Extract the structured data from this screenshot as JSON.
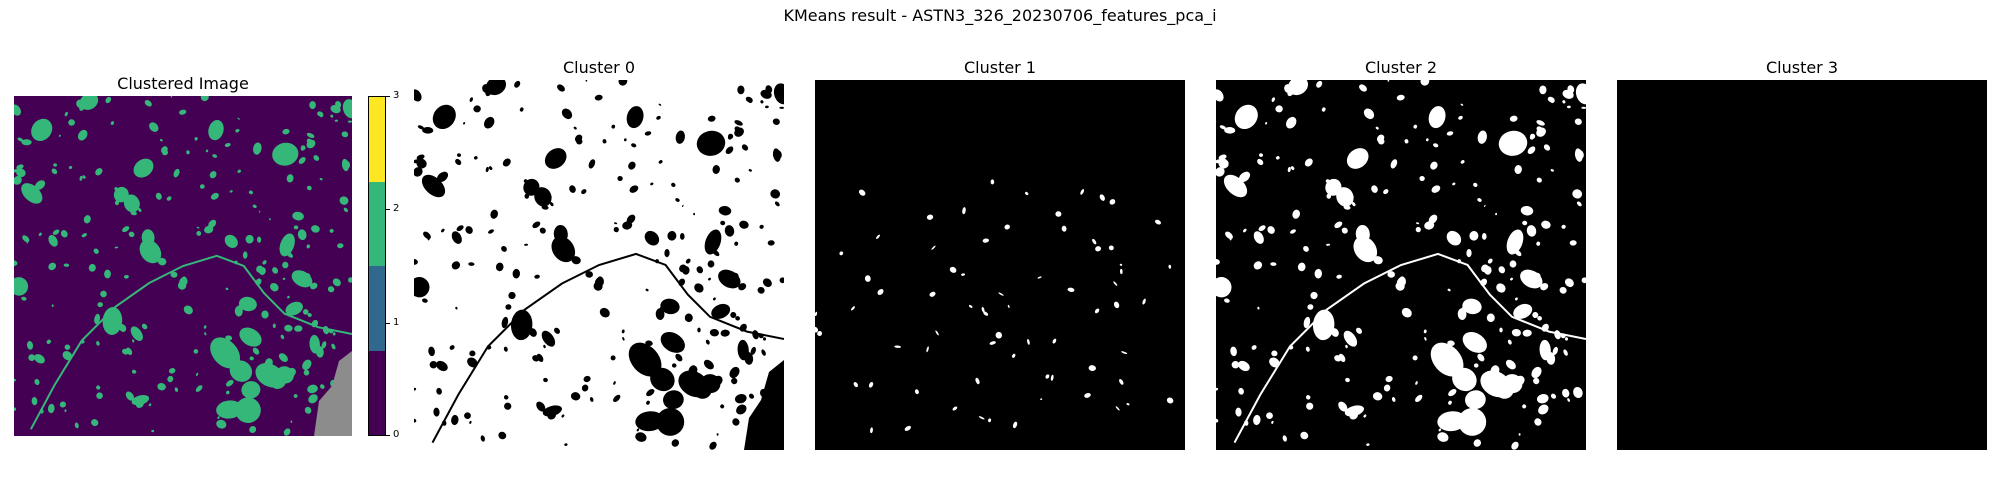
{
  "figure": {
    "suptitle": "KMeans result - ASTN3_326_20230706_features_pca_i"
  },
  "panels": {
    "clustered": {
      "title": "Clustered Image"
    },
    "cluster0": {
      "title": "Cluster 0"
    },
    "cluster1": {
      "title": "Cluster 1"
    },
    "cluster2": {
      "title": "Cluster 2"
    },
    "cluster3": {
      "title": "Cluster 3"
    }
  },
  "colorbar": {
    "ticks": [
      "0",
      "1",
      "2",
      "3"
    ],
    "colors": [
      "#440154",
      "#31688e",
      "#35b779",
      "#fde725"
    ],
    "nodata_color": "#8c8c8c"
  },
  "mask_colors": {
    "on": "#ffffff",
    "off": "#000000"
  }
}
